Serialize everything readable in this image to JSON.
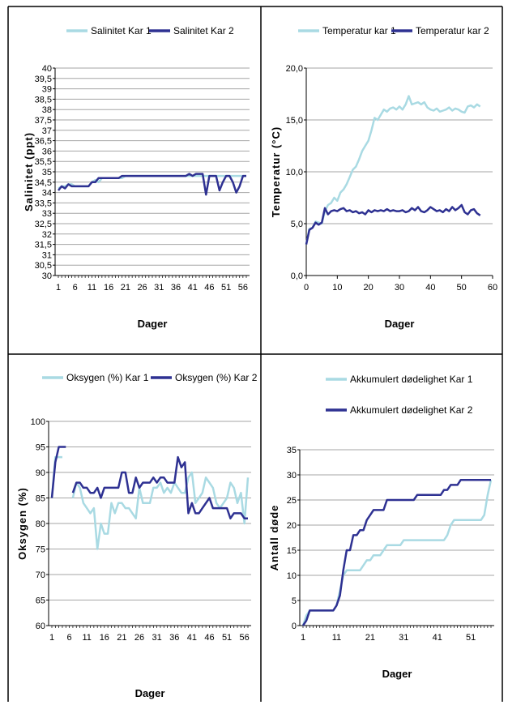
{
  "colors": {
    "kar1": "#a9dae3",
    "kar2": "#2e3192",
    "grid": "#a6a6a6",
    "frame": "#000000"
  },
  "chart_data": [
    {
      "type": "line",
      "xlabel": "Dager",
      "ylabel": "Salinitet  (ppt)",
      "ylim": [
        30,
        40
      ],
      "y_ticks": [
        "30",
        "30,5",
        "31",
        "31,5",
        "32",
        "32,5",
        "33",
        "33,5",
        "34",
        "34,5",
        "35",
        "35,5",
        "36",
        "36,5",
        "37",
        "37,5",
        "38",
        "38,5",
        "39",
        "39,5",
        "40"
      ],
      "x_ticks": [
        "1",
        "6",
        "11",
        "16",
        "21",
        "26",
        "31",
        "36",
        "41",
        "46",
        "51",
        "56"
      ],
      "legend_position": "top",
      "x": [
        1,
        2,
        3,
        4,
        5,
        6,
        7,
        8,
        9,
        10,
        11,
        12,
        13,
        14,
        15,
        16,
        17,
        18,
        19,
        20,
        21,
        22,
        23,
        24,
        25,
        26,
        27,
        28,
        29,
        30,
        31,
        32,
        33,
        34,
        35,
        36,
        37,
        38,
        39,
        40,
        41,
        42,
        43,
        44,
        45,
        46,
        47,
        48,
        49,
        50,
        51,
        52,
        53,
        54,
        55,
        56,
        57
      ],
      "series": [
        {
          "name": "Salinitet Kar 1",
          "color_key": "kar1",
          "values": [
            34.2,
            34.3,
            34.3,
            34.4,
            34.4,
            34.3,
            34.3,
            34.3,
            34.3,
            34.3,
            34.5,
            34.6,
            34.5,
            34.7,
            34.7,
            34.7,
            34.7,
            34.7,
            34.7,
            34.7,
            34.8,
            34.8,
            34.8,
            34.8,
            34.8,
            34.8,
            34.8,
            34.8,
            34.8,
            34.8,
            34.8,
            34.8,
            34.8,
            34.8,
            34.8,
            34.8,
            34.8,
            34.8,
            34.8,
            34.8,
            34.8,
            34.8,
            34.8,
            34.8,
            34.8,
            34.8,
            34.8,
            34.8,
            34.8,
            34.8,
            34.8,
            34.8,
            34.8,
            34.8,
            34.8,
            34.8,
            34.8
          ]
        },
        {
          "name": "Salinitet Kar 2",
          "color_key": "kar2",
          "values": [
            34.1,
            34.3,
            34.2,
            34.4,
            34.3,
            34.3,
            34.3,
            34.3,
            34.3,
            34.3,
            34.5,
            34.5,
            34.7,
            34.7,
            34.7,
            34.7,
            34.7,
            34.7,
            34.7,
            34.8,
            34.8,
            34.8,
            34.8,
            34.8,
            34.8,
            34.8,
            34.8,
            34.8,
            34.8,
            34.8,
            34.8,
            34.8,
            34.8,
            34.8,
            34.8,
            34.8,
            34.8,
            34.8,
            34.8,
            34.9,
            34.8,
            34.9,
            34.9,
            34.9,
            33.9,
            34.8,
            34.8,
            34.8,
            34.1,
            34.5,
            34.8,
            34.8,
            34.5,
            34.0,
            34.3,
            34.8,
            34.8
          ]
        }
      ]
    },
    {
      "type": "line",
      "xlabel": "Dager",
      "ylabel": "Temperatur  (°C)",
      "ylim": [
        0,
        20
      ],
      "y_ticks": [
        "0,0",
        "5,0",
        "10,0",
        "15,0",
        "20,0"
      ],
      "xlim": [
        0,
        60
      ],
      "x_ticks": [
        "0",
        "10",
        "20",
        "30",
        "40",
        "50",
        "60"
      ],
      "legend_position": "top",
      "series": [
        {
          "name": "Temperatur kar 1",
          "color_key": "kar1",
          "x": [
            0,
            1,
            2,
            3,
            4,
            5,
            6,
            7,
            8,
            9,
            10,
            11,
            12,
            13,
            14,
            15,
            16,
            17,
            18,
            19,
            20,
            21,
            22,
            23,
            24,
            25,
            26,
            27,
            28,
            29,
            30,
            31,
            32,
            33,
            34,
            35,
            36,
            37,
            38,
            39,
            40,
            41,
            42,
            43,
            44,
            45,
            46,
            47,
            48,
            49,
            50,
            51,
            52,
            53,
            54,
            55,
            56
          ],
          "values": [
            3.0,
            4.5,
            4.6,
            5.2,
            5.1,
            5.0,
            6.2,
            6.8,
            7.0,
            7.5,
            7.2,
            8.0,
            8.3,
            8.8,
            9.5,
            10.2,
            10.5,
            11.2,
            12.0,
            12.5,
            13.0,
            14.0,
            15.2,
            15.0,
            15.5,
            16.0,
            15.8,
            16.1,
            16.2,
            16.0,
            16.3,
            16.0,
            16.5,
            17.3,
            16.5,
            16.6,
            16.7,
            16.5,
            16.7,
            16.2,
            16.0,
            15.9,
            16.1,
            15.8,
            15.9,
            16.0,
            16.2,
            15.9,
            16.1,
            16.0,
            15.8,
            15.7,
            16.3,
            16.4,
            16.2,
            16.5,
            16.3
          ]
        },
        {
          "name": "Temperatur kar 2",
          "color_key": "kar2",
          "x": [
            0,
            1,
            2,
            3,
            4,
            5,
            6,
            7,
            8,
            9,
            10,
            11,
            12,
            13,
            14,
            15,
            16,
            17,
            18,
            19,
            20,
            21,
            22,
            23,
            24,
            25,
            26,
            27,
            28,
            29,
            30,
            31,
            32,
            33,
            34,
            35,
            36,
            37,
            38,
            39,
            40,
            41,
            42,
            43,
            44,
            45,
            46,
            47,
            48,
            49,
            50,
            51,
            52,
            53,
            54,
            55,
            56
          ],
          "values": [
            3.0,
            4.4,
            4.6,
            5.1,
            4.9,
            5.1,
            6.5,
            5.9,
            6.2,
            6.3,
            6.2,
            6.4,
            6.5,
            6.2,
            6.3,
            6.1,
            6.2,
            6.0,
            6.1,
            5.9,
            6.3,
            6.1,
            6.3,
            6.2,
            6.3,
            6.2,
            6.4,
            6.2,
            6.3,
            6.2,
            6.2,
            6.3,
            6.1,
            6.2,
            6.5,
            6.3,
            6.6,
            6.2,
            6.1,
            6.3,
            6.6,
            6.4,
            6.2,
            6.3,
            6.1,
            6.4,
            6.2,
            6.6,
            6.3,
            6.5,
            6.8,
            6.1,
            5.9,
            6.3,
            6.4,
            6.0,
            5.8
          ]
        }
      ]
    },
    {
      "type": "line",
      "xlabel": "Dager",
      "ylabel": "Oksygen  (%)",
      "ylim": [
        60,
        100
      ],
      "y_ticks": [
        "60",
        "65",
        "70",
        "75",
        "80",
        "85",
        "90",
        "95",
        "100"
      ],
      "x_ticks": [
        "1",
        "6",
        "11",
        "16",
        "21",
        "26",
        "31",
        "36",
        "41",
        "46",
        "51",
        "56"
      ],
      "legend_position": "top",
      "x": [
        1,
        2,
        3,
        4,
        5,
        6,
        7,
        8,
        9,
        10,
        11,
        12,
        13,
        14,
        15,
        16,
        17,
        18,
        19,
        20,
        21,
        22,
        23,
        24,
        25,
        26,
        27,
        28,
        29,
        30,
        31,
        32,
        33,
        34,
        35,
        36,
        37,
        38,
        39,
        40,
        41,
        42,
        43,
        44,
        45,
        46,
        47,
        48,
        49,
        50,
        51,
        52,
        53,
        54,
        55,
        56,
        57
      ],
      "series": [
        {
          "name": "Oksygen (%) Kar 1",
          "color_key": "kar1",
          "values": [
            85,
            93,
            93,
            93,
            null,
            null,
            85,
            88,
            87,
            84,
            83,
            82,
            83,
            75,
            80,
            78,
            78,
            84,
            82,
            84,
            84,
            83,
            83,
            82,
            81,
            87,
            84,
            84,
            84,
            87,
            87,
            88,
            86,
            87,
            86,
            88,
            87,
            86,
            86,
            89,
            90,
            84,
            85,
            86,
            89,
            88,
            87,
            84,
            83,
            84,
            85,
            88,
            87,
            84,
            86,
            80,
            89
          ]
        },
        {
          "name": "Oksygen (%) Kar 2",
          "color_key": "kar2",
          "values": [
            85,
            92,
            95,
            95,
            95,
            null,
            86,
            88,
            88,
            87,
            87,
            86,
            86,
            87,
            85,
            87,
            87,
            87,
            87,
            87,
            90,
            90,
            86,
            86,
            89,
            87,
            88,
            88,
            88,
            89,
            88,
            89,
            89,
            88,
            88,
            88,
            93,
            91,
            92,
            82,
            84,
            82,
            82,
            83,
            84,
            85,
            83,
            83,
            83,
            83,
            83,
            81,
            82,
            82,
            82,
            81,
            81
          ]
        }
      ]
    },
    {
      "type": "line",
      "xlabel": "Dager",
      "ylabel": "Antall  døde",
      "ylim": [
        0,
        35
      ],
      "y_ticks": [
        "0",
        "5",
        "10",
        "15",
        "20",
        "25",
        "30",
        "35"
      ],
      "x_ticks": [
        "1",
        "11",
        "21",
        "31",
        "41",
        "51"
      ],
      "legend_position": "top",
      "x": [
        1,
        2,
        3,
        4,
        5,
        6,
        7,
        8,
        9,
        10,
        11,
        12,
        13,
        14,
        15,
        16,
        17,
        18,
        19,
        20,
        21,
        22,
        23,
        24,
        25,
        26,
        27,
        28,
        29,
        30,
        31,
        32,
        33,
        34,
        35,
        36,
        37,
        38,
        39,
        40,
        41,
        42,
        43,
        44,
        45,
        46,
        47,
        48,
        49,
        50,
        51,
        52,
        53,
        54,
        55,
        56,
        57
      ],
      "series": [
        {
          "name": "Akkumulert dødelighet Kar 1",
          "color_key": "kar1",
          "values": [
            0,
            2,
            3,
            3,
            3,
            3,
            3,
            3,
            3,
            3,
            4,
            7,
            10,
            11,
            11,
            11,
            11,
            11,
            12,
            13,
            13,
            14,
            14,
            14,
            15,
            16,
            16,
            16,
            16,
            16,
            17,
            17,
            17,
            17,
            17,
            17,
            17,
            17,
            17,
            17,
            17,
            17,
            17,
            18,
            20,
            21,
            21,
            21,
            21,
            21,
            21,
            21,
            21,
            21,
            22,
            26,
            29
          ]
        },
        {
          "name": "Akkumulert dødelighet Kar 2",
          "color_key": "kar2",
          "values": [
            0,
            1,
            3,
            3,
            3,
            3,
            3,
            3,
            3,
            3,
            4,
            6,
            11,
            15,
            15,
            18,
            18,
            19,
            19,
            21,
            22,
            23,
            23,
            23,
            23,
            25,
            25,
            25,
            25,
            25,
            25,
            25,
            25,
            25,
            26,
            26,
            26,
            26,
            26,
            26,
            26,
            26,
            27,
            27,
            28,
            28,
            28,
            29,
            29,
            29,
            29,
            29,
            29,
            29,
            29,
            29,
            29
          ]
        }
      ]
    }
  ]
}
